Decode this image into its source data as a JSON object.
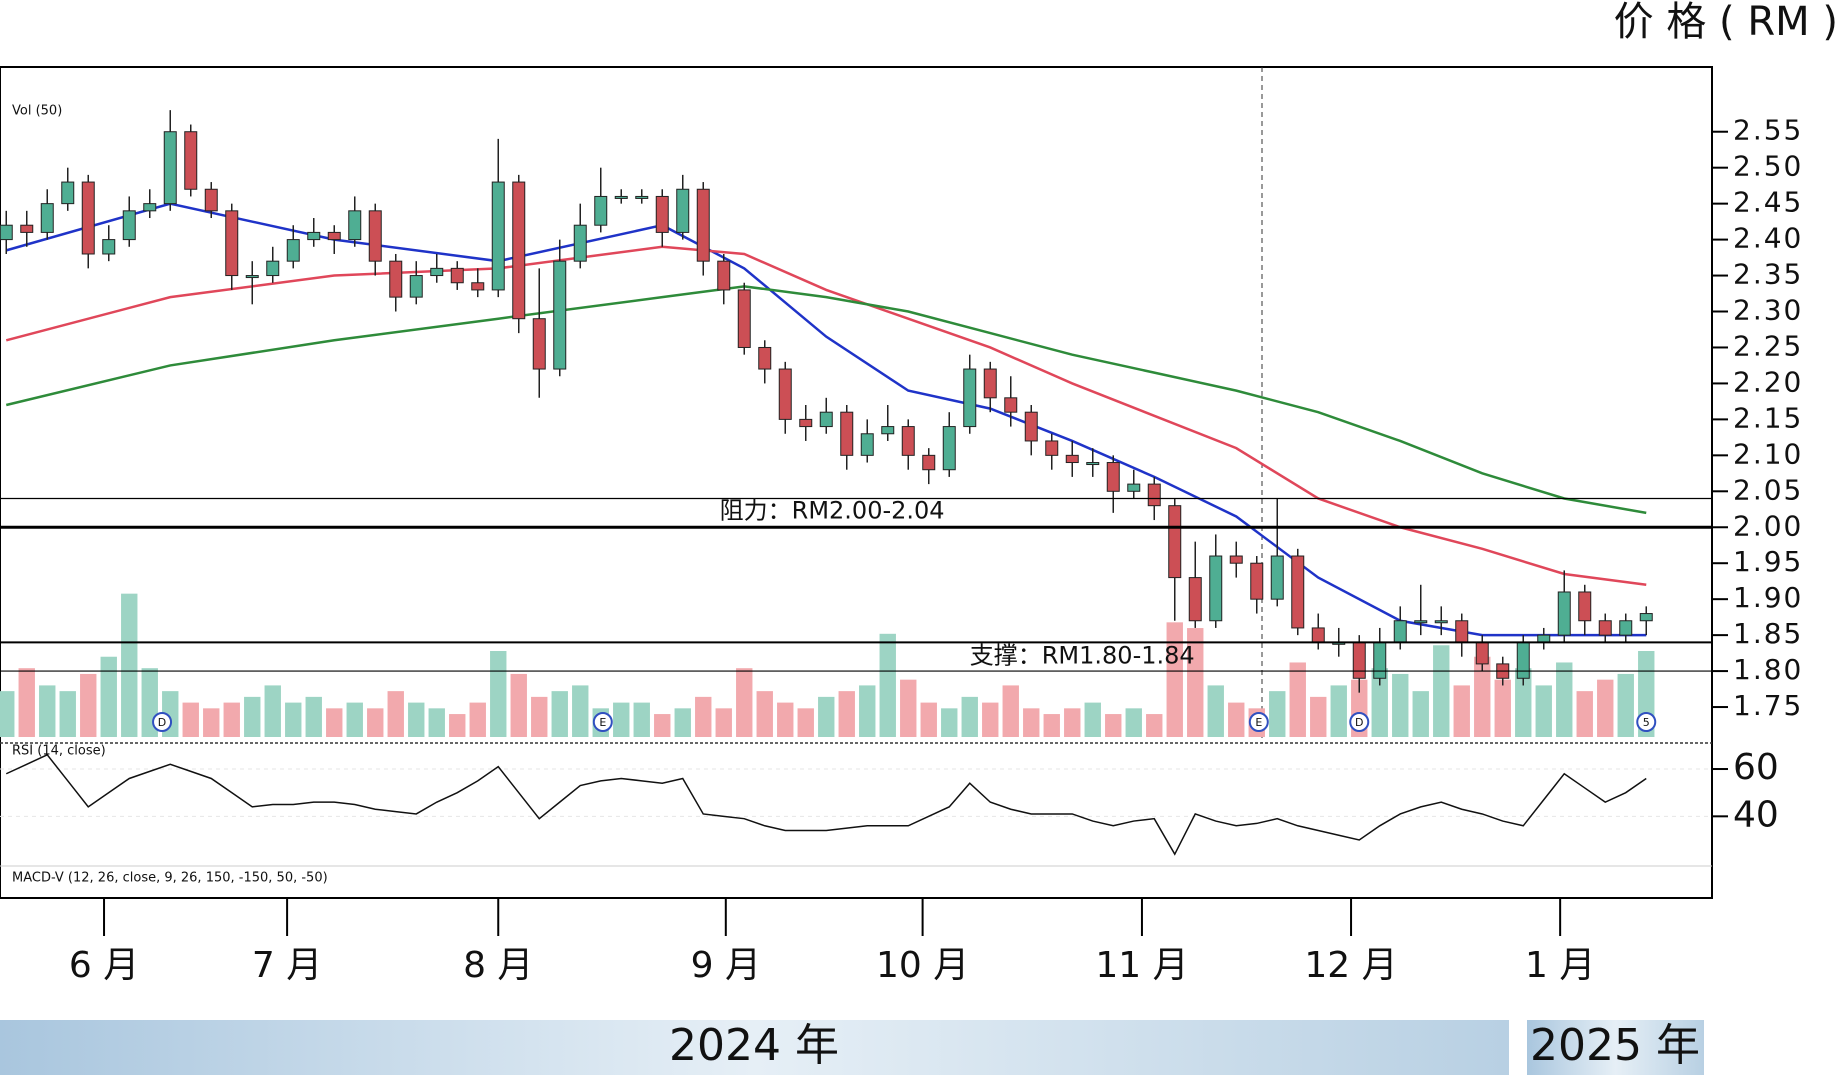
{
  "chart_data": {
    "type": "candlestick",
    "unit_label": "价 格 ( RM )",
    "legend_texts": [
      "Vol (50)",
      "RSI (14, close)",
      "MACD-V (12, 26, close, 9, 26, 150, -150, 50, -50)"
    ],
    "ohlc": [
      [
        2.4,
        2.44,
        2.38,
        2.42
      ],
      [
        2.42,
        2.44,
        2.39,
        2.41
      ],
      [
        2.41,
        2.47,
        2.4,
        2.45
      ],
      [
        2.45,
        2.5,
        2.44,
        2.48
      ],
      [
        2.48,
        2.49,
        2.36,
        2.38
      ],
      [
        2.38,
        2.42,
        2.37,
        2.4
      ],
      [
        2.4,
        2.46,
        2.39,
        2.44
      ],
      [
        2.44,
        2.47,
        2.43,
        2.45
      ],
      [
        2.45,
        2.58,
        2.44,
        2.55
      ],
      [
        2.55,
        2.56,
        2.46,
        2.47
      ],
      [
        2.47,
        2.48,
        2.43,
        2.44
      ],
      [
        2.44,
        2.45,
        2.33,
        2.35
      ],
      [
        2.35,
        2.37,
        2.31,
        2.35
      ],
      [
        2.35,
        2.39,
        2.34,
        2.37
      ],
      [
        2.37,
        2.42,
        2.36,
        2.4
      ],
      [
        2.4,
        2.43,
        2.39,
        2.41
      ],
      [
        2.41,
        2.42,
        2.38,
        2.4
      ],
      [
        2.4,
        2.46,
        2.39,
        2.44
      ],
      [
        2.44,
        2.45,
        2.35,
        2.37
      ],
      [
        2.37,
        2.38,
        2.3,
        2.32
      ],
      [
        2.32,
        2.37,
        2.31,
        2.35
      ],
      [
        2.35,
        2.38,
        2.34,
        2.36
      ],
      [
        2.36,
        2.37,
        2.33,
        2.34
      ],
      [
        2.34,
        2.36,
        2.32,
        2.33
      ],
      [
        2.33,
        2.54,
        2.32,
        2.48
      ],
      [
        2.48,
        2.49,
        2.27,
        2.29
      ],
      [
        2.29,
        2.36,
        2.18,
        2.22
      ],
      [
        2.22,
        2.4,
        2.21,
        2.37
      ],
      [
        2.37,
        2.45,
        2.36,
        2.42
      ],
      [
        2.42,
        2.5,
        2.41,
        2.46
      ],
      [
        2.46,
        2.47,
        2.45,
        2.46
      ],
      [
        2.46,
        2.47,
        2.45,
        2.46
      ],
      [
        2.46,
        2.47,
        2.39,
        2.41
      ],
      [
        2.41,
        2.49,
        2.4,
        2.47
      ],
      [
        2.47,
        2.48,
        2.35,
        2.37
      ],
      [
        2.37,
        2.38,
        2.31,
        2.33
      ],
      [
        2.33,
        2.34,
        2.24,
        2.25
      ],
      [
        2.25,
        2.26,
        2.2,
        2.22
      ],
      [
        2.22,
        2.23,
        2.13,
        2.15
      ],
      [
        2.15,
        2.17,
        2.12,
        2.14
      ],
      [
        2.14,
        2.18,
        2.13,
        2.16
      ],
      [
        2.16,
        2.17,
        2.08,
        2.1
      ],
      [
        2.1,
        2.15,
        2.09,
        2.13
      ],
      [
        2.13,
        2.17,
        2.12,
        2.14
      ],
      [
        2.14,
        2.15,
        2.08,
        2.1
      ],
      [
        2.1,
        2.11,
        2.06,
        2.08
      ],
      [
        2.08,
        2.16,
        2.07,
        2.14
      ],
      [
        2.14,
        2.24,
        2.13,
        2.22
      ],
      [
        2.22,
        2.23,
        2.16,
        2.18
      ],
      [
        2.18,
        2.21,
        2.14,
        2.16
      ],
      [
        2.16,
        2.17,
        2.1,
        2.12
      ],
      [
        2.12,
        2.13,
        2.08,
        2.1
      ],
      [
        2.1,
        2.12,
        2.07,
        2.09
      ],
      [
        2.09,
        2.11,
        2.07,
        2.09
      ],
      [
        2.09,
        2.1,
        2.02,
        2.05
      ],
      [
        2.05,
        2.08,
        2.04,
        2.06
      ],
      [
        2.06,
        2.07,
        2.01,
        2.03
      ],
      [
        2.03,
        2.04,
        1.87,
        1.93
      ],
      [
        1.93,
        1.98,
        1.86,
        1.87
      ],
      [
        1.87,
        1.99,
        1.86,
        1.96
      ],
      [
        1.96,
        1.98,
        1.93,
        1.95
      ],
      [
        1.95,
        1.96,
        1.88,
        1.9
      ],
      [
        1.9,
        2.04,
        1.89,
        1.96
      ],
      [
        1.96,
        1.97,
        1.85,
        1.86
      ],
      [
        1.86,
        1.88,
        1.83,
        1.84
      ],
      [
        1.84,
        1.86,
        1.82,
        1.84
      ],
      [
        1.84,
        1.85,
        1.77,
        1.79
      ],
      [
        1.79,
        1.86,
        1.78,
        1.84
      ],
      [
        1.84,
        1.89,
        1.83,
        1.87
      ],
      [
        1.87,
        1.92,
        1.85,
        1.87
      ],
      [
        1.87,
        1.89,
        1.85,
        1.87
      ],
      [
        1.87,
        1.88,
        1.82,
        1.84
      ],
      [
        1.84,
        1.85,
        1.8,
        1.81
      ],
      [
        1.81,
        1.82,
        1.78,
        1.79
      ],
      [
        1.79,
        1.85,
        1.78,
        1.84
      ],
      [
        1.84,
        1.86,
        1.83,
        1.85
      ],
      [
        1.85,
        1.94,
        1.84,
        1.91
      ],
      [
        1.91,
        1.92,
        1.85,
        1.87
      ],
      [
        1.87,
        1.88,
        1.84,
        1.85
      ],
      [
        1.85,
        1.88,
        1.84,
        1.87
      ],
      [
        1.87,
        1.89,
        1.85,
        1.88
      ]
    ],
    "up_color": "#4fae93",
    "down_color": "#cc4f55",
    "ma": [
      {
        "color": "#1f33c8",
        "x": [
          0,
          8,
          16,
          24,
          32,
          36,
          40,
          44,
          48,
          52,
          56,
          60,
          64,
          68,
          72,
          76,
          80
        ],
        "values": [
          2.385,
          2.45,
          2.4,
          2.37,
          2.42,
          2.36,
          2.265,
          2.19,
          2.165,
          2.12,
          2.07,
          2.015,
          1.93,
          1.87,
          1.85,
          1.85,
          1.85
        ]
      },
      {
        "color": "#e0475a",
        "x": [
          0,
          8,
          16,
          24,
          32,
          36,
          40,
          44,
          48,
          52,
          56,
          60,
          64,
          68,
          72,
          76,
          80
        ],
        "values": [
          2.26,
          2.32,
          2.35,
          2.36,
          2.39,
          2.38,
          2.33,
          2.29,
          2.25,
          2.2,
          2.155,
          2.11,
          2.04,
          2.0,
          1.97,
          1.935,
          1.92
        ]
      },
      {
        "color": "#2e8b3a",
        "x": [
          0,
          8,
          16,
          24,
          32,
          36,
          40,
          44,
          48,
          52,
          56,
          60,
          64,
          68,
          72,
          76,
          80
        ],
        "values": [
          2.17,
          2.225,
          2.26,
          2.29,
          2.32,
          2.335,
          2.32,
          2.3,
          2.27,
          2.24,
          2.215,
          2.19,
          2.16,
          2.12,
          2.075,
          2.04,
          2.02
        ]
      }
    ],
    "volume": [
      8,
      12,
      9,
      8,
      11,
      14,
      25,
      12,
      8,
      6,
      5,
      6,
      7,
      9,
      6,
      7,
      5,
      6,
      5,
      8,
      6,
      5,
      4,
      6,
      15,
      11,
      7,
      8,
      9,
      5,
      6,
      6,
      4,
      5,
      7,
      5,
      12,
      8,
      6,
      5,
      7,
      8,
      9,
      18,
      10,
      6,
      5,
      7,
      6,
      9,
      5,
      4,
      5,
      6,
      4,
      5,
      4,
      20,
      19,
      9,
      6,
      5,
      8,
      13,
      7,
      9,
      10,
      12,
      11,
      8,
      16,
      9,
      14,
      10,
      12,
      9,
      13,
      8,
      10,
      11,
      15
    ],
    "volume_ylim": [
      0,
      30
    ],
    "rsi": [
      58,
      62,
      66,
      55,
      44,
      50,
      56,
      59,
      62,
      59,
      56,
      50,
      44,
      45,
      45,
      46,
      46,
      45,
      43,
      42,
      41,
      46,
      50,
      55,
      61,
      50,
      39,
      46,
      53,
      55,
      56,
      55,
      54,
      56,
      41,
      40,
      39,
      36,
      34,
      34,
      34,
      35,
      36,
      36,
      36,
      40,
      44,
      54,
      46,
      43,
      41,
      41,
      41,
      38,
      36,
      38,
      39,
      24,
      41,
      38,
      36,
      37,
      39,
      36,
      34,
      32,
      30,
      36,
      41,
      44,
      46,
      43,
      41,
      38,
      36,
      47,
      58,
      52,
      46,
      50,
      56
    ],
    "rsi_ylim": [
      19,
      71
    ],
    "rsi_yticks": [
      40,
      60
    ],
    "events": [
      {
        "x": 7.6,
        "label": "D"
      },
      {
        "x": 29.1,
        "label": "E"
      },
      {
        "x": 61.1,
        "label": "E"
      },
      {
        "x": 66,
        "label": "D"
      },
      {
        "x": 80,
        "label": "5"
      }
    ],
    "levels": [
      {
        "value": 2.04,
        "width": 1.2
      },
      {
        "value": 2.0,
        "width": 3
      },
      {
        "value": 1.84,
        "width": 2
      },
      {
        "value": 1.8,
        "width": 1.2
      }
    ],
    "annotations": [
      {
        "text": "阻力：RM2.00-2.04",
        "x": 35.3,
        "y": 2.022
      },
      {
        "text": "支撑：RM1.80-1.84",
        "x": 47.5,
        "y": 1.82
      }
    ],
    "xlim": [
      0,
      81
    ],
    "xticks": [
      {
        "value": 5.27,
        "label": "6 月"
      },
      {
        "value": 14.2,
        "label": "7 月"
      },
      {
        "value": 24.5,
        "label": "8 月"
      },
      {
        "value": 35.6,
        "label": "9 月"
      },
      {
        "value": 45.2,
        "label": "10 月"
      },
      {
        "value": 55.9,
        "label": "11 月"
      },
      {
        "value": 66.1,
        "label": "12 月"
      },
      {
        "value": 76.3,
        "label": "1 月"
      }
    ],
    "ylim": [
      1.7,
      2.64
    ],
    "yticks": [
      1.75,
      {
        "value": 1.8,
        "label": "1.80"
      },
      1.85,
      {
        "value": 1.9,
        "label": "1.90"
      },
      1.95,
      {
        "value": 2.0,
        "label": "2.00"
      },
      2.05,
      {
        "value": 2.1,
        "label": "2.10"
      },
      2.15,
      {
        "value": 2.2,
        "label": "2.20"
      },
      2.25,
      {
        "value": 2.3,
        "label": "2.30"
      },
      2.35,
      {
        "value": 2.4,
        "label": "2.40"
      },
      2.45,
      {
        "value": 2.5,
        "label": "2.50"
      },
      2.55
    ],
    "years": [
      "2024 年",
      "2025 年"
    ]
  }
}
